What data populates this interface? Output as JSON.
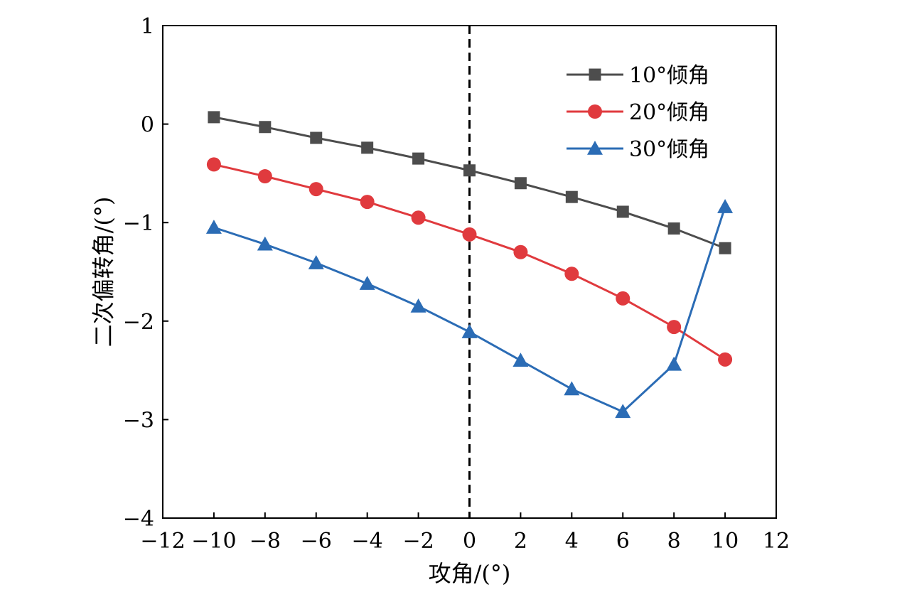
{
  "chart_data": {
    "type": "line",
    "xlabel": "攻角/(°)",
    "ylabel": "二次偏转角/(°)",
    "xlim": [
      -12,
      12
    ],
    "ylim": [
      -4,
      1
    ],
    "xticks": [
      -12,
      -10,
      -8,
      -6,
      -4,
      -2,
      0,
      2,
      4,
      6,
      8,
      10,
      12
    ],
    "yticks": [
      -4,
      -3,
      -2,
      -1,
      0,
      1
    ],
    "xtick_labels": [
      "−12",
      "−10",
      "−8",
      "−6",
      "−4",
      "−2",
      "0",
      "2",
      "4",
      "6",
      "8",
      "10",
      "12"
    ],
    "ytick_labels": [
      "−4",
      "−3",
      "−2",
      "−1",
      "0",
      "1"
    ],
    "reference_line": {
      "x": 0,
      "style": "dashed",
      "color": "#000000"
    },
    "grid": false,
    "legend_position": "top-right",
    "x": [
      -10,
      -8,
      -6,
      -4,
      -2,
      0,
      2,
      4,
      6,
      8,
      10
    ],
    "series": [
      {
        "name": "10°倾角",
        "marker": "square",
        "color": "#4d4d4d",
        "values": [
          0.07,
          -0.03,
          -0.14,
          -0.24,
          -0.35,
          -0.47,
          -0.6,
          -0.74,
          -0.89,
          -1.06,
          -1.26
        ]
      },
      {
        "name": "20°倾角",
        "marker": "circle",
        "color": "#e03a3e",
        "values": [
          -0.41,
          -0.53,
          -0.66,
          -0.79,
          -0.95,
          -1.12,
          -1.3,
          -1.52,
          -1.77,
          -2.06,
          -2.39
        ]
      },
      {
        "name": "30°倾角",
        "marker": "triangle",
        "color": "#2b6cb5",
        "values": [
          -1.05,
          -1.22,
          -1.41,
          -1.62,
          -1.85,
          -2.11,
          -2.4,
          -2.69,
          -2.92,
          -2.44,
          -0.84
        ]
      }
    ]
  }
}
